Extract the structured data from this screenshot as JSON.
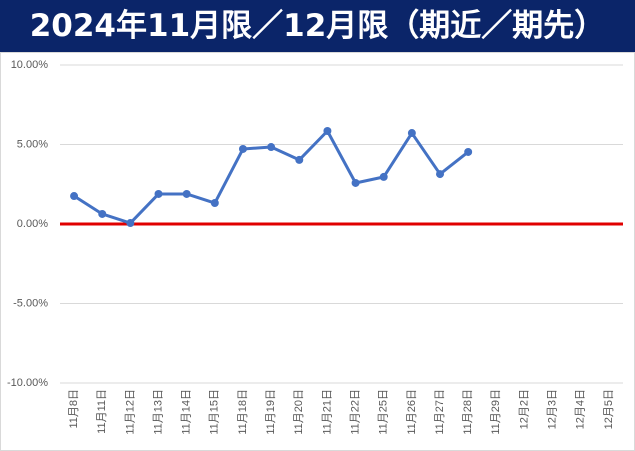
{
  "chart_data": {
    "type": "line",
    "title": "2024年11月限／12月限（期近／期先）",
    "categories": [
      "11月8日",
      "11月11日",
      "11月12日",
      "11月13日",
      "11月14日",
      "11月15日",
      "11月18日",
      "11月19日",
      "11月20日",
      "11月21日",
      "11月22日",
      "11月25日",
      "11月26日",
      "11月27日",
      "11月28日",
      "11月29日",
      "12月2日",
      "12月3日",
      "12月4日",
      "12月5日"
    ],
    "series": [
      {
        "name": "期近／期先",
        "color": "#4472c4",
        "values": [
          1.76,
          0.63,
          0.06,
          1.89,
          1.89,
          1.32,
          4.72,
          4.84,
          4.03,
          5.85,
          2.58,
          2.96,
          5.72,
          3.14,
          4.53,
          null,
          null,
          null,
          null,
          null
        ]
      }
    ],
    "ylim": [
      -10,
      10
    ],
    "yticks": [
      {
        "value": -10,
        "label": "-10.00%"
      },
      {
        "value": -5,
        "label": "-5.00%"
      },
      {
        "value": 0,
        "label": "0.00%"
      },
      {
        "value": 5,
        "label": "5.00%"
      },
      {
        "value": 10,
        "label": "10.00%"
      }
    ],
    "grid": true,
    "x_axis_line_color": "#e00000"
  }
}
